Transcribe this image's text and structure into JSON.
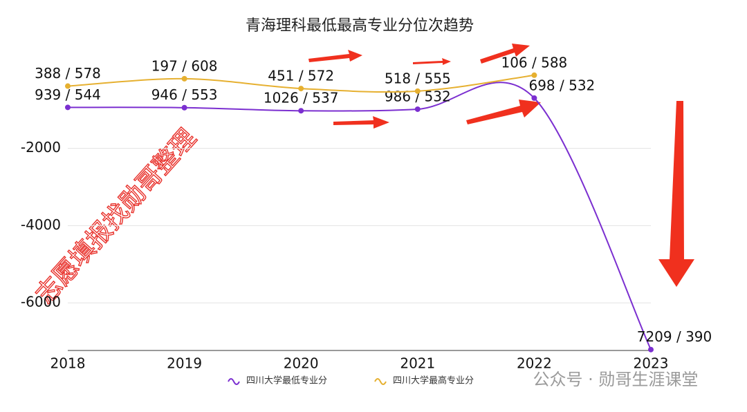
{
  "chart_data": {
    "type": "line",
    "title": "青海理科最低最高专业分位次趋势",
    "categories": [
      "2018",
      "2019",
      "2020",
      "2021",
      "2022",
      "2023"
    ],
    "series": [
      {
        "name": "四川大学最低专业分",
        "color": "#7b2fd0",
        "values": [
          -939,
          -946,
          -1026,
          -986,
          -698,
          -7209
        ],
        "value_labels": [
          "939 / 544",
          "946 / 553",
          "1026 / 537",
          "986 / 532",
          "698 / 532",
          "7209 / 390"
        ]
      },
      {
        "name": "四川大学最高专业分",
        "color": "#e6b030",
        "values": [
          -388,
          -197,
          -451,
          -518,
          -106,
          null
        ],
        "value_labels": [
          "388 / 578",
          "197 / 608",
          "451 / 572",
          "518 / 555",
          "106 / 588",
          null
        ]
      }
    ],
    "ylim": [
      -7232,
      1000
    ],
    "yticks": [
      -2000,
      -4000,
      -6000
    ],
    "grid": true,
    "legend": "bottom",
    "annotations": [
      "志愿填报找勋哥整理",
      "公众号 · 勋哥生涯课堂"
    ]
  }
}
